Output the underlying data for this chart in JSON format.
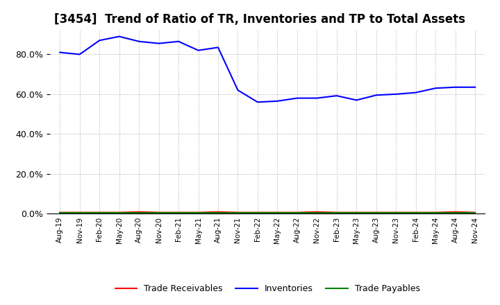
{
  "title": "[3454]  Trend of Ratio of TR, Inventories and TP to Total Assets",
  "x_labels": [
    "Aug-19",
    "Nov-19",
    "Feb-20",
    "May-20",
    "Aug-20",
    "Nov-20",
    "Feb-21",
    "May-21",
    "Aug-21",
    "Nov-21",
    "Feb-22",
    "May-22",
    "Aug-22",
    "Nov-22",
    "Feb-23",
    "May-23",
    "Aug-23",
    "Nov-23",
    "Feb-24",
    "May-24",
    "Aug-24",
    "Nov-24"
  ],
  "inventories": [
    0.81,
    0.8,
    0.87,
    0.89,
    0.865,
    0.855,
    0.865,
    0.82,
    0.835,
    0.62,
    0.56,
    0.565,
    0.58,
    0.58,
    0.592,
    0.57,
    0.595,
    0.6,
    0.608,
    0.63,
    0.635,
    0.635
  ],
  "trade_receivables": [
    0.005,
    0.005,
    0.005,
    0.005,
    0.008,
    0.005,
    0.005,
    0.005,
    0.008,
    0.005,
    0.005,
    0.005,
    0.005,
    0.008,
    0.005,
    0.005,
    0.005,
    0.005,
    0.005,
    0.005,
    0.008,
    0.005
  ],
  "trade_payables": [
    0.002,
    0.002,
    0.002,
    0.002,
    0.002,
    0.002,
    0.002,
    0.002,
    0.002,
    0.002,
    0.002,
    0.002,
    0.002,
    0.002,
    0.002,
    0.002,
    0.002,
    0.002,
    0.002,
    0.002,
    0.002,
    0.002
  ],
  "inventories_color": "#0000FF",
  "trade_receivables_color": "#FF0000",
  "trade_payables_color": "#008000",
  "ylim": [
    0.0,
    0.92
  ],
  "yticks": [
    0.0,
    0.2,
    0.4,
    0.6,
    0.8
  ],
  "background_color": "#FFFFFF",
  "grid_color": "#AAAAAA",
  "title_fontsize": 12,
  "legend_labels": [
    "Trade Receivables",
    "Inventories",
    "Trade Payables"
  ]
}
